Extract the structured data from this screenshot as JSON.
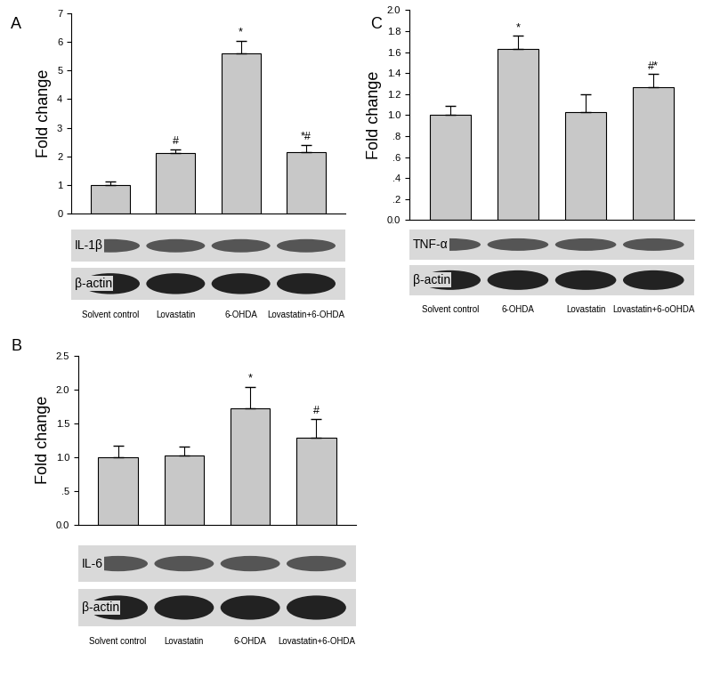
{
  "chart_data": [
    {
      "type": "bar",
      "panel_label": "A",
      "ylabel": "Fold change",
      "categories": [
        "Solvent control",
        "Lovastatin",
        "6-OHDA",
        "Lovastatin+6-OHDA"
      ],
      "values": [
        1.0,
        2.1,
        5.6,
        2.15
      ],
      "errors": [
        0.1,
        0.15,
        0.45,
        0.25
      ],
      "marks": [
        null,
        "#",
        "*",
        "*#"
      ],
      "blots": [
        "IL-1β",
        "β-actin"
      ],
      "color": "#c8c8c8",
      "ylim": [
        0,
        7
      ],
      "yticks": [
        0,
        1,
        2,
        3,
        4,
        5,
        6,
        7
      ]
    },
    {
      "type": "bar",
      "panel_label": "B",
      "ylabel": "Fold change",
      "categories": [
        "Solvent control",
        "Lovastatin",
        "6-OHDA",
        "Lovastatin+6-OHDA"
      ],
      "values": [
        1.0,
        1.02,
        1.72,
        1.28
      ],
      "errors": [
        0.16,
        0.13,
        0.32,
        0.28
      ],
      "marks": [
        null,
        null,
        "*",
        "#"
      ],
      "blots": [
        "IL-6",
        "β-actin"
      ],
      "color": "#c8c8c8",
      "ylim": [
        0,
        2.5
      ],
      "yticks": [
        0.0,
        {
          "value": 0.5,
          "label": ".5"
        },
        1.0,
        1.5,
        2.0,
        2.5
      ]
    },
    {
      "type": "bar",
      "panel_label": "C",
      "ylabel": "Fold change",
      "categories": [
        "Solvent control",
        "6-OHDA",
        "Lovastatin",
        "Lovastatin+6-oOHDA"
      ],
      "values": [
        1.0,
        1.63,
        1.03,
        1.27
      ],
      "errors": [
        0.09,
        0.13,
        0.17,
        0.12
      ],
      "marks": [
        null,
        "*",
        null,
        "#*"
      ],
      "blots": [
        "TNF-α",
        "β-actin"
      ],
      "color": "#c8c8c8",
      "ylim": [
        0,
        2.0
      ],
      "yticks": [
        0.0,
        {
          "value": 0.2,
          "label": ".2"
        },
        {
          "value": 0.4,
          "label": ".4"
        },
        {
          "value": 0.6,
          "label": ".6"
        },
        {
          "value": 0.8,
          "label": ".8"
        },
        1.0,
        1.2,
        1.4,
        1.6,
        1.8,
        2.0
      ]
    }
  ]
}
